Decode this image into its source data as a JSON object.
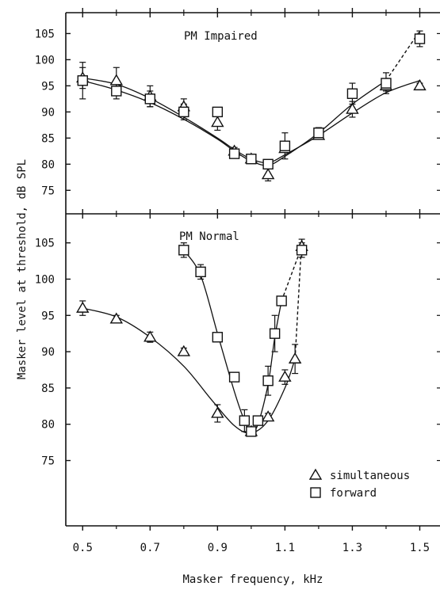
{
  "chart_data": {
    "type": "scatter",
    "xlabel": "Masker frequency, kHz",
    "ylabel": "Masker level at threshold, dB SPL",
    "x_ticks": [
      0.5,
      0.7,
      0.9,
      1.1,
      1.3,
      1.5
    ],
    "x_tick_labels": [
      "0.5",
      "0.7",
      "0.9",
      "1.1",
      "1.3",
      "1.5"
    ],
    "xlim": [
      0.45,
      1.56
    ],
    "y_ticks": [
      75,
      80,
      85,
      90,
      95,
      100,
      105
    ],
    "y_tick_labels": [
      "75",
      "80",
      "85",
      "90",
      "95",
      "100",
      "105"
    ],
    "legend": {
      "position": "bottom-right",
      "entries": [
        {
          "symbol": "triangle",
          "label": "simultaneous"
        },
        {
          "symbol": "square",
          "label": "forward"
        }
      ]
    },
    "panels": [
      {
        "title": "PM Impaired",
        "ylim": [
          70.5,
          109
        ],
        "series": [
          {
            "name": "simultaneous",
            "marker": "triangle",
            "points": [
              {
                "x": 0.5,
                "y": 96.5,
                "err": 2.0
              },
              {
                "x": 0.6,
                "y": 96.0,
                "err": 2.5
              },
              {
                "x": 0.7,
                "y": 93.0,
                "err": 2.0
              },
              {
                "x": 0.8,
                "y": 91.0,
                "err": 1.5
              },
              {
                "x": 0.9,
                "y": 88.0,
                "err": 1.5
              },
              {
                "x": 0.95,
                "y": 82.5,
                "err": 0.7
              },
              {
                "x": 1.0,
                "y": 81.0,
                "err": 0.5
              },
              {
                "x": 1.05,
                "y": 78.0,
                "err": 1.2
              },
              {
                "x": 1.1,
                "y": 83.0,
                "err": 0.7
              },
              {
                "x": 1.2,
                "y": 85.5,
                "err": 0.7
              },
              {
                "x": 1.3,
                "y": 90.5,
                "err": 1.5
              },
              {
                "x": 1.4,
                "y": 95.0,
                "err": 1.0
              },
              {
                "x": 1.5,
                "y": 95.0,
                "err": 0.5
              }
            ],
            "fit": [
              [
                0.5,
                96.5
              ],
              [
                0.6,
                95.3
              ],
              [
                0.7,
                92.6
              ],
              [
                0.8,
                89.0
              ],
              [
                0.9,
                85.0
              ],
              [
                0.95,
                82.8
              ],
              [
                1.0,
                81.0
              ],
              [
                1.05,
                80.3
              ],
              [
                1.1,
                81.8
              ],
              [
                1.2,
                85.5
              ],
              [
                1.3,
                89.8
              ],
              [
                1.4,
                93.7
              ],
              [
                1.5,
                96.0
              ]
            ]
          },
          {
            "name": "forward",
            "marker": "square",
            "points": [
              {
                "x": 0.5,
                "y": 96.0,
                "err": 3.5
              },
              {
                "x": 0.6,
                "y": 94.0,
                "err": 1.5
              },
              {
                "x": 0.7,
                "y": 92.5,
                "err": 1.5
              },
              {
                "x": 0.8,
                "y": 90.0,
                "err": 1.5
              },
              {
                "x": 0.9,
                "y": 90.0,
                "err": 0.5
              },
              {
                "x": 0.95,
                "y": 82.0,
                "err": 0.5
              },
              {
                "x": 1.0,
                "y": 81.0,
                "err": 0.5
              },
              {
                "x": 1.05,
                "y": 80.0,
                "err": 0.5
              },
              {
                "x": 1.1,
                "y": 83.5,
                "err": 2.5
              },
              {
                "x": 1.2,
                "y": 86.0,
                "err": 1.0
              },
              {
                "x": 1.3,
                "y": 93.5,
                "err": 2.0
              },
              {
                "x": 1.4,
                "y": 95.5,
                "err": 2.0
              },
              {
                "x": 1.5,
                "y": 104.0,
                "err": 1.5
              }
            ],
            "fit": [
              [
                0.5,
                96.0
              ],
              [
                0.6,
                94.2
              ],
              [
                0.7,
                91.8
              ],
              [
                0.8,
                88.6
              ],
              [
                0.9,
                84.8
              ],
              [
                0.95,
                82.5
              ],
              [
                1.0,
                80.6
              ],
              [
                1.05,
                79.8
              ],
              [
                1.1,
                81.5
              ],
              [
                1.2,
                86.0
              ],
              [
                1.3,
                91.5
              ],
              [
                1.4,
                96.0
              ]
            ],
            "dashed": [
              [
                1.4,
                96.0
              ],
              [
                1.5,
                105.5
              ]
            ]
          }
        ]
      },
      {
        "title": "PM Normal",
        "ylim": [
          66,
          109
        ],
        "series": [
          {
            "name": "simultaneous",
            "marker": "triangle",
            "points": [
              {
                "x": 0.5,
                "y": 96.0,
                "err": 1.0
              },
              {
                "x": 0.6,
                "y": 94.5,
                "err": 0.5
              },
              {
                "x": 0.7,
                "y": 92.0,
                "err": 0.7
              },
              {
                "x": 0.8,
                "y": 90.0,
                "err": 0.5
              },
              {
                "x": 0.9,
                "y": 81.5,
                "err": 1.2
              },
              {
                "x": 1.0,
                "y": 79.0,
                "err": 0.5
              },
              {
                "x": 1.05,
                "y": 81.0,
                "err": 0.5
              },
              {
                "x": 1.1,
                "y": 86.5,
                "err": 1.0
              },
              {
                "x": 1.13,
                "y": 89.0,
                "err": 2.0
              },
              {
                "x": 1.15,
                "y": 104.5,
                "err": 1.0
              }
            ],
            "fit": [
              [
                0.5,
                96.0
              ],
              [
                0.6,
                94.8
              ],
              [
                0.7,
                92.0
              ],
              [
                0.8,
                88.0
              ],
              [
                0.88,
                83.5
              ],
              [
                0.95,
                79.8
              ],
              [
                1.0,
                78.8
              ],
              [
                1.05,
                80.5
              ],
              [
                1.1,
                85.0
              ],
              [
                1.13,
                89.0
              ]
            ],
            "dashed": [
              [
                1.13,
                89.0
              ],
              [
                1.15,
                105.5
              ]
            ]
          },
          {
            "name": "forward",
            "marker": "square",
            "points": [
              {
                "x": 0.8,
                "y": 104.0,
                "err": 1.0
              },
              {
                "x": 0.85,
                "y": 101.0,
                "err": 1.0
              },
              {
                "x": 0.9,
                "y": 92.0,
                "err": 0.5
              },
              {
                "x": 0.95,
                "y": 86.5,
                "err": 0.5
              },
              {
                "x": 0.98,
                "y": 80.5,
                "err": 1.5
              },
              {
                "x": 1.0,
                "y": 79.0,
                "err": 0.5
              },
              {
                "x": 1.02,
                "y": 80.5,
                "err": 0.5
              },
              {
                "x": 1.05,
                "y": 86.0,
                "err": 2.0
              },
              {
                "x": 1.07,
                "y": 92.5,
                "err": 2.5
              },
              {
                "x": 1.09,
                "y": 97.0,
                "err": 0.5
              },
              {
                "x": 1.15,
                "y": 104.0,
                "err": 1.0
              }
            ],
            "fit": [
              [
                0.8,
                104.0
              ],
              [
                0.85,
                100.5
              ],
              [
                0.9,
                92.5
              ],
              [
                0.95,
                84.5
              ],
              [
                0.98,
                80.5
              ],
              [
                1.0,
                79.0
              ],
              [
                1.02,
                80.0
              ],
              [
                1.05,
                85.5
              ],
              [
                1.07,
                92.0
              ],
              [
                1.09,
                97.0
              ]
            ],
            "dashed": [
              [
                1.09,
                97.0
              ],
              [
                1.15,
                104.5
              ]
            ]
          }
        ]
      }
    ]
  }
}
